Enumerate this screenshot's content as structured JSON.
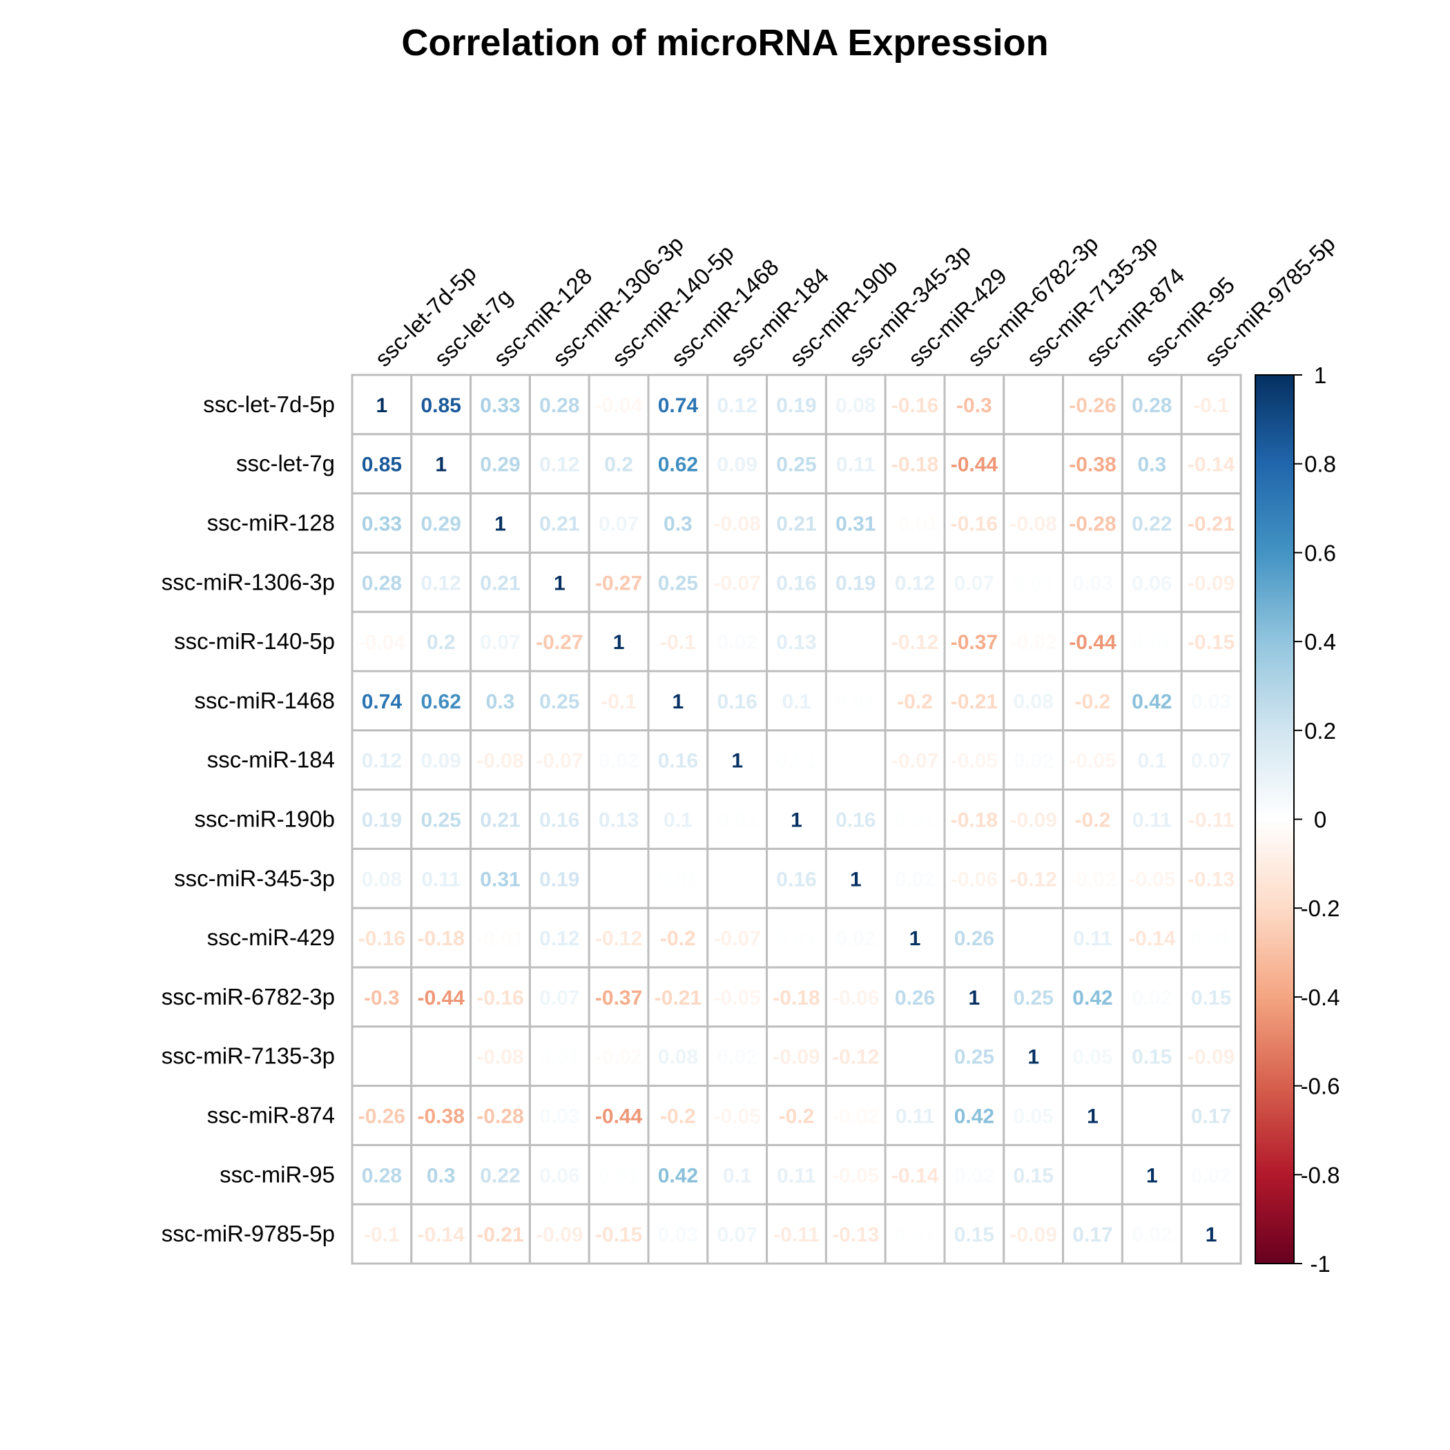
{
  "chart_data": {
    "type": "heatmap",
    "title": "Correlation of microRNA Expression",
    "labels": [
      "ssc-let-7d-5p",
      "ssc-let-7g",
      "ssc-miR-128",
      "ssc-miR-1306-3p",
      "ssc-miR-140-5p",
      "ssc-miR-1468",
      "ssc-miR-184",
      "ssc-miR-190b",
      "ssc-miR-345-3p",
      "ssc-miR-429",
      "ssc-miR-6782-3p",
      "ssc-miR-7135-3p",
      "ssc-miR-874",
      "ssc-miR-95",
      "ssc-miR-9785-5p"
    ],
    "matrix": [
      [
        1,
        0.85,
        0.33,
        0.28,
        -0.04,
        0.74,
        0.12,
        0.19,
        0.08,
        -0.16,
        -0.3,
        0,
        -0.26,
        0.28,
        -0.1
      ],
      [
        0.85,
        1,
        0.29,
        0.12,
        0.2,
        0.62,
        0.09,
        0.25,
        0.11,
        -0.18,
        -0.44,
        0,
        -0.38,
        0.3,
        -0.14
      ],
      [
        0.33,
        0.29,
        1,
        0.21,
        0.07,
        0.3,
        -0.08,
        0.21,
        0.31,
        -0.01,
        -0.16,
        -0.08,
        -0.28,
        0.22,
        -0.21
      ],
      [
        0.28,
        0.12,
        0.21,
        1,
        -0.27,
        0.25,
        -0.07,
        0.16,
        0.19,
        0.12,
        0.07,
        0.01,
        0.03,
        0.06,
        -0.09
      ],
      [
        -0.04,
        0.2,
        0.07,
        -0.27,
        1,
        -0.1,
        0.02,
        0.13,
        0,
        -0.12,
        -0.37,
        -0.02,
        -0.44,
        0.01,
        -0.15
      ],
      [
        0.74,
        0.62,
        0.3,
        0.25,
        -0.1,
        1,
        0.16,
        0.1,
        0.01,
        -0.2,
        -0.21,
        0.08,
        -0.2,
        0.42,
        0.03
      ],
      [
        0.12,
        0.09,
        -0.08,
        -0.07,
        0.02,
        0.16,
        1,
        0.01,
        0,
        -0.07,
        -0.05,
        0.02,
        -0.05,
        0.1,
        0.07
      ],
      [
        0.19,
        0.25,
        0.21,
        0.16,
        0.13,
        0.1,
        0.01,
        1,
        0.16,
        0.01,
        -0.18,
        -0.09,
        -0.2,
        0.11,
        -0.11
      ],
      [
        0.08,
        0.11,
        0.31,
        0.19,
        0,
        0.01,
        0,
        0.16,
        1,
        0.02,
        -0.06,
        -0.12,
        -0.02,
        -0.05,
        -0.13
      ],
      [
        -0.16,
        -0.18,
        -0.01,
        0.12,
        -0.12,
        -0.2,
        -0.07,
        0.01,
        0.02,
        1,
        0.26,
        0,
        0.11,
        -0.14,
        0.01
      ],
      [
        -0.3,
        -0.44,
        -0.16,
        0.07,
        -0.37,
        -0.21,
        -0.05,
        -0.18,
        -0.06,
        0.26,
        1,
        0.25,
        0.42,
        0.02,
        0.15
      ],
      [
        0,
        0,
        -0.08,
        0.01,
        -0.02,
        0.08,
        0.02,
        -0.09,
        -0.12,
        0,
        0.25,
        1,
        0.05,
        0.15,
        -0.09
      ],
      [
        -0.26,
        -0.38,
        -0.28,
        0.03,
        -0.44,
        -0.2,
        -0.05,
        -0.2,
        -0.02,
        0.11,
        0.42,
        0.05,
        1,
        0,
        0.17
      ],
      [
        0.28,
        0.3,
        0.22,
        0.06,
        0.01,
        0.42,
        0.1,
        0.11,
        -0.05,
        -0.14,
        0.02,
        0.15,
        0,
        1,
        0.02
      ],
      [
        -0.1,
        -0.14,
        -0.21,
        -0.09,
        -0.15,
        0.03,
        0.07,
        -0.11,
        -0.13,
        0.01,
        0.15,
        -0.09,
        0.17,
        0.02,
        1
      ]
    ],
    "color_scale": {
      "range": [
        -1,
        1
      ],
      "ticks": [
        "1",
        "0.8",
        "0.6",
        "0.4",
        "0.2",
        "0",
        "-0.2",
        "-0.4",
        "-0.6",
        "-0.8",
        "-1"
      ],
      "palette": [
        "#67001F",
        "#B2182B",
        "#D6604D",
        "#F4A582",
        "#FDDBC7",
        "#FFFFFF",
        "#D1E5F0",
        "#92C5DE",
        "#4393C3",
        "#2166AC",
        "#053061"
      ]
    },
    "grid": true,
    "legend_placement": "right"
  }
}
